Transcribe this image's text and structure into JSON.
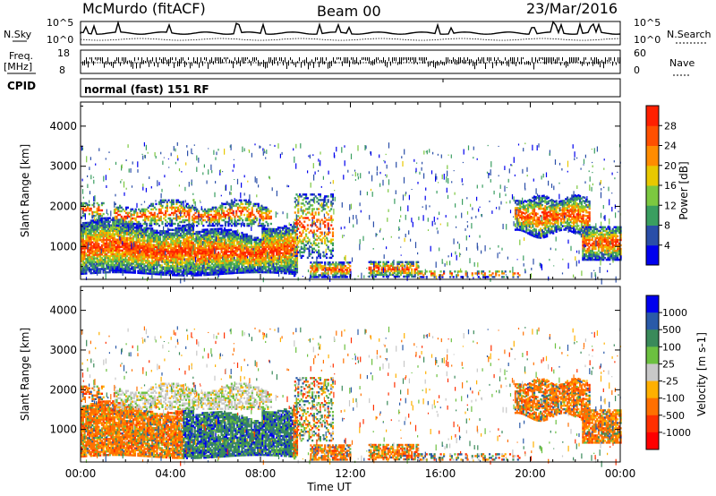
{
  "header": {
    "station": "McMurdo (fitACF)",
    "beam": "Beam 00",
    "date": "23/Mar/2016"
  },
  "strip_labels": {
    "nsky": "N.Sky",
    "nsearch": "N.Search",
    "freq": "Freq.",
    "freq_unit": "[MHz]",
    "nave": "Nave",
    "cpid": "CPID",
    "mode": "normal (fast) 151 RF",
    "noise_left_top": "10^5",
    "noise_left_bottom": "10^0",
    "noise_right_top": "10^5",
    "noise_right_bottom": "10^0",
    "freq_top": "18",
    "freq_bottom": "8",
    "nave_top": "60",
    "nave_bottom": "0"
  },
  "chart_data": [
    {
      "type": "heatmap",
      "name": "power",
      "ylabel": "Slant Range [km]",
      "yticks": [
        1000,
        2000,
        3000,
        4000
      ],
      "ylim": [
        180,
        4600
      ],
      "xlim": [
        0,
        24
      ],
      "x_ticks": [
        "00:00",
        "04:00",
        "08:00",
        "12:00",
        "16:00",
        "20:00",
        "00:00"
      ],
      "colorbar_label": "Power [dB]",
      "colorbar_ticks": [
        4,
        8,
        12,
        16,
        20,
        24,
        28
      ],
      "colorbar_range": [
        0,
        32
      ],
      "colors": [
        "#0000ee",
        "#2a4ea8",
        "#3a9e60",
        "#7cc840",
        "#e8c800",
        "#ff8c00",
        "#ff2000"
      ]
    },
    {
      "type": "heatmap",
      "name": "velocity",
      "ylabel": "Slant Range [km]",
      "yticks": [
        1000,
        2000,
        3000,
        4000
      ],
      "ylim": [
        180,
        4600
      ],
      "xlim": [
        0,
        24
      ],
      "xlabel": "Time UT",
      "x_ticks": [
        "00:00",
        "04:00",
        "08:00",
        "12:00",
        "16:00",
        "20:00",
        "00:00"
      ],
      "colorbar_label": "Velocity [m s-1]",
      "colorbar_ticks": [
        "1000",
        "500",
        "100",
        "25",
        "-25",
        "-100",
        "-500",
        "-1000"
      ],
      "colors": [
        "#0000ee",
        "#2a5aa8",
        "#3a8a5a",
        "#6cc040",
        "#c8c8c8",
        "#ffb000",
        "#ff7000",
        "#ff0000"
      ]
    }
  ]
}
